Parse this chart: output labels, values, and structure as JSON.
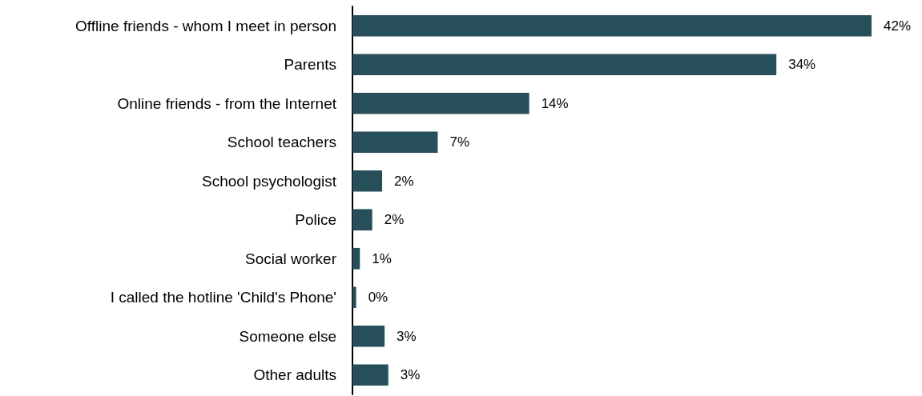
{
  "chart_data": {
    "type": "bar",
    "orientation": "horizontal",
    "categories": [
      "Offline friends - whom I meet in person",
      "Parents",
      "Online friends - from the Internet",
      "School teachers",
      "School psychologist",
      "Police",
      "Social worker",
      "I called the hotline 'Child's Phone'",
      "Someone else",
      "Other adults"
    ],
    "values": [
      42,
      34.3,
      14.3,
      6.9,
      2.4,
      1.6,
      0.6,
      0.3,
      2.6,
      2.9
    ],
    "value_labels": [
      "42%",
      "34%",
      "14%",
      "7%",
      "2%",
      "2%",
      "1%",
      "0%",
      "3%",
      "3%"
    ],
    "color": "#264f5a"
  }
}
